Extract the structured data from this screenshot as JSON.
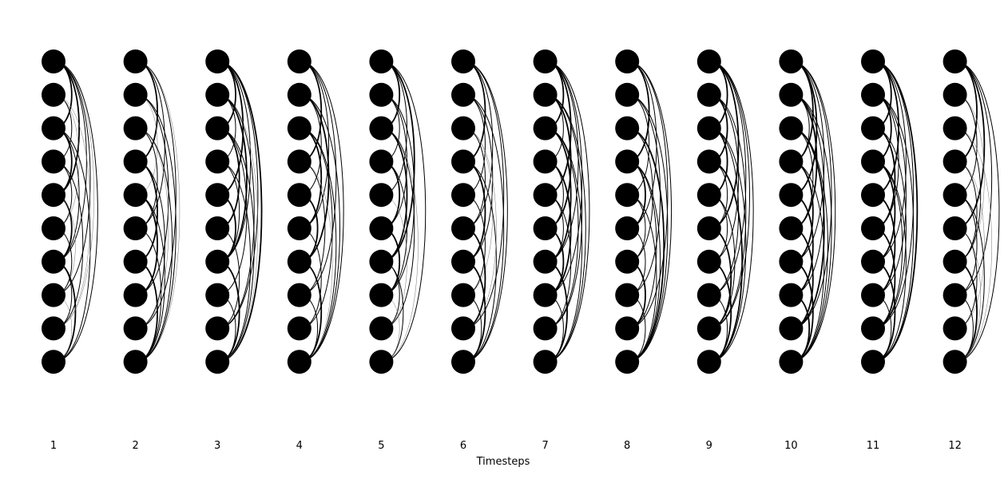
{
  "chart_data": {
    "type": "diagram",
    "description_style": "temporal arc network",
    "x_axis": {
      "label": "Timesteps",
      "ticks": [
        "1",
        "2",
        "3",
        "4",
        "5",
        "6",
        "7",
        "8",
        "9",
        "10",
        "11",
        "12"
      ]
    },
    "nodes_per_timestep": 10,
    "node_color": "#000000",
    "edge_color": "#000000",
    "edges": [
      [
        [
          0,
          2,
          2
        ],
        [
          0,
          4,
          2
        ],
        [
          0,
          6,
          1
        ],
        [
          0,
          7,
          1
        ],
        [
          0,
          9,
          1
        ],
        [
          1,
          3,
          1
        ],
        [
          1,
          5,
          0
        ],
        [
          2,
          4,
          2
        ],
        [
          2,
          6,
          1
        ],
        [
          3,
          5,
          1
        ],
        [
          3,
          8,
          1
        ],
        [
          4,
          6,
          2
        ],
        [
          4,
          7,
          0
        ],
        [
          5,
          7,
          1
        ],
        [
          6,
          8,
          1
        ],
        [
          6,
          9,
          2
        ],
        [
          7,
          9,
          0
        ],
        [
          1,
          8,
          0
        ],
        [
          2,
          9,
          1
        ],
        [
          0,
          8,
          0
        ]
      ],
      [
        [
          0,
          3,
          2
        ],
        [
          0,
          5,
          1
        ],
        [
          0,
          8,
          1
        ],
        [
          1,
          4,
          0
        ],
        [
          1,
          7,
          1
        ],
        [
          2,
          5,
          1
        ],
        [
          2,
          9,
          1
        ],
        [
          3,
          6,
          2
        ],
        [
          3,
          8,
          1
        ],
        [
          4,
          7,
          2
        ],
        [
          5,
          9,
          1
        ],
        [
          6,
          9,
          2
        ],
        [
          0,
          9,
          0
        ],
        [
          1,
          9,
          1
        ],
        [
          4,
          9,
          1
        ],
        [
          2,
          8,
          0
        ]
      ],
      [
        [
          0,
          2,
          2
        ],
        [
          0,
          4,
          2
        ],
        [
          0,
          6,
          1
        ],
        [
          0,
          9,
          2
        ],
        [
          1,
          3,
          1
        ],
        [
          1,
          6,
          2
        ],
        [
          1,
          8,
          1
        ],
        [
          2,
          5,
          2
        ],
        [
          2,
          7,
          1
        ],
        [
          3,
          6,
          1
        ],
        [
          3,
          9,
          1
        ],
        [
          4,
          6,
          2
        ],
        [
          5,
          8,
          1
        ],
        [
          6,
          9,
          2
        ],
        [
          7,
          9,
          1
        ],
        [
          0,
          8,
          1
        ],
        [
          2,
          9,
          1
        ],
        [
          1,
          9,
          0
        ]
      ],
      [
        [
          0,
          3,
          2
        ],
        [
          0,
          5,
          1
        ],
        [
          0,
          7,
          1
        ],
        [
          0,
          9,
          1
        ],
        [
          1,
          4,
          1
        ],
        [
          1,
          6,
          2
        ],
        [
          2,
          5,
          2
        ],
        [
          2,
          8,
          1
        ],
        [
          3,
          7,
          1
        ],
        [
          4,
          6,
          2
        ],
        [
          5,
          8,
          1
        ],
        [
          6,
          9,
          2
        ],
        [
          7,
          9,
          1
        ],
        [
          1,
          9,
          1
        ],
        [
          3,
          9,
          0
        ],
        [
          2,
          9,
          1
        ]
      ],
      [
        [
          0,
          2,
          2
        ],
        [
          0,
          4,
          1
        ],
        [
          0,
          6,
          2
        ],
        [
          0,
          9,
          1
        ],
        [
          1,
          3,
          1
        ],
        [
          1,
          5,
          1
        ],
        [
          2,
          6,
          2
        ],
        [
          2,
          8,
          1
        ],
        [
          3,
          5,
          2
        ],
        [
          3,
          7,
          1
        ],
        [
          4,
          8,
          0
        ],
        [
          5,
          7,
          2
        ],
        [
          6,
          8,
          1
        ],
        [
          6,
          9,
          1
        ],
        [
          7,
          9,
          0
        ],
        [
          1,
          7,
          1
        ],
        [
          2,
          9,
          0
        ]
      ],
      [
        [
          0,
          3,
          2
        ],
        [
          0,
          5,
          1
        ],
        [
          0,
          8,
          1
        ],
        [
          1,
          4,
          1
        ],
        [
          1,
          6,
          1
        ],
        [
          2,
          5,
          1
        ],
        [
          2,
          7,
          0
        ],
        [
          3,
          6,
          2
        ],
        [
          3,
          9,
          1
        ],
        [
          4,
          7,
          1
        ],
        [
          5,
          8,
          2
        ],
        [
          6,
          9,
          2
        ],
        [
          0,
          9,
          1
        ],
        [
          1,
          9,
          1
        ],
        [
          7,
          9,
          1
        ],
        [
          2,
          8,
          0
        ]
      ],
      [
        [
          0,
          2,
          2
        ],
        [
          0,
          4,
          2
        ],
        [
          0,
          7,
          1
        ],
        [
          0,
          9,
          1
        ],
        [
          1,
          3,
          1
        ],
        [
          1,
          5,
          2
        ],
        [
          1,
          8,
          1
        ],
        [
          2,
          6,
          2
        ],
        [
          2,
          9,
          1
        ],
        [
          3,
          5,
          1
        ],
        [
          3,
          7,
          2
        ],
        [
          4,
          6,
          1
        ],
        [
          4,
          8,
          1
        ],
        [
          5,
          7,
          2
        ],
        [
          6,
          9,
          2
        ],
        [
          7,
          9,
          1
        ],
        [
          0,
          6,
          1
        ],
        [
          2,
          8,
          1
        ],
        [
          1,
          9,
          1
        ]
      ],
      [
        [
          0,
          3,
          2
        ],
        [
          0,
          5,
          1
        ],
        [
          0,
          8,
          1
        ],
        [
          1,
          4,
          1
        ],
        [
          1,
          7,
          1
        ],
        [
          2,
          6,
          1
        ],
        [
          2,
          9,
          2
        ],
        [
          3,
          5,
          2
        ],
        [
          3,
          8,
          1
        ],
        [
          4,
          6,
          1
        ],
        [
          4,
          9,
          1
        ],
        [
          5,
          7,
          1
        ],
        [
          6,
          8,
          2
        ],
        [
          7,
          9,
          1
        ],
        [
          0,
          9,
          1
        ],
        [
          1,
          9,
          1
        ],
        [
          3,
          9,
          1
        ]
      ],
      [
        [
          0,
          2,
          2
        ],
        [
          0,
          5,
          2
        ],
        [
          0,
          7,
          1
        ],
        [
          0,
          9,
          1
        ],
        [
          1,
          3,
          2
        ],
        [
          1,
          6,
          1
        ],
        [
          1,
          8,
          1
        ],
        [
          2,
          4,
          2
        ],
        [
          2,
          7,
          1
        ],
        [
          3,
          5,
          1
        ],
        [
          3,
          9,
          2
        ],
        [
          4,
          6,
          1
        ],
        [
          4,
          8,
          1
        ],
        [
          5,
          8,
          2
        ],
        [
          6,
          9,
          2
        ],
        [
          7,
          9,
          1
        ],
        [
          2,
          9,
          1
        ],
        [
          0,
          8,
          1
        ]
      ],
      [
        [
          0,
          3,
          2
        ],
        [
          0,
          4,
          2
        ],
        [
          0,
          6,
          1
        ],
        [
          0,
          9,
          1
        ],
        [
          1,
          3,
          1
        ],
        [
          1,
          5,
          2
        ],
        [
          1,
          7,
          1
        ],
        [
          2,
          5,
          1
        ],
        [
          2,
          8,
          2
        ],
        [
          3,
          6,
          2
        ],
        [
          3,
          9,
          1
        ],
        [
          4,
          7,
          2
        ],
        [
          5,
          8,
          2
        ],
        [
          6,
          9,
          2
        ],
        [
          7,
          9,
          2
        ],
        [
          1,
          9,
          1
        ],
        [
          0,
          8,
          1
        ],
        [
          2,
          9,
          1
        ]
      ],
      [
        [
          0,
          2,
          2
        ],
        [
          0,
          4,
          2
        ],
        [
          0,
          6,
          1
        ],
        [
          0,
          9,
          2
        ],
        [
          1,
          3,
          2
        ],
        [
          1,
          5,
          1
        ],
        [
          1,
          7,
          1
        ],
        [
          2,
          5,
          2
        ],
        [
          2,
          8,
          1
        ],
        [
          3,
          6,
          2
        ],
        [
          3,
          8,
          1
        ],
        [
          4,
          7,
          2
        ],
        [
          5,
          8,
          2
        ],
        [
          6,
          9,
          2
        ],
        [
          7,
          9,
          1
        ],
        [
          1,
          9,
          1
        ],
        [
          0,
          8,
          1
        ],
        [
          3,
          9,
          1
        ]
      ],
      [
        [
          0,
          3,
          2
        ],
        [
          0,
          5,
          2
        ],
        [
          0,
          7,
          1
        ],
        [
          1,
          4,
          1
        ],
        [
          1,
          6,
          0
        ],
        [
          2,
          6,
          1
        ],
        [
          3,
          6,
          1
        ],
        [
          3,
          8,
          0
        ],
        [
          4,
          7,
          1
        ],
        [
          5,
          8,
          1
        ],
        [
          6,
          9,
          2
        ],
        [
          7,
          9,
          1
        ],
        [
          0,
          9,
          1
        ],
        [
          2,
          9,
          0
        ],
        [
          4,
          9,
          1
        ],
        [
          5,
          9,
          0
        ]
      ]
    ]
  }
}
